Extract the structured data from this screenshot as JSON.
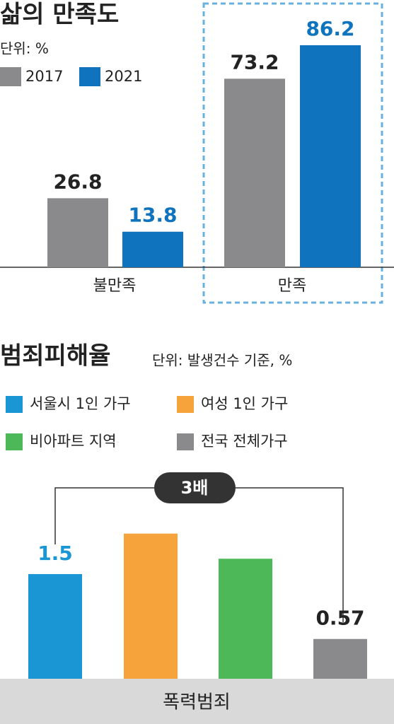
{
  "chart_data": [
    {
      "type": "bar",
      "title": "삶의 만족도",
      "subtitle": "단위: %",
      "categories": [
        "불만족",
        "만족"
      ],
      "series": [
        {
          "name": "2017",
          "color": "#8a8a8d",
          "values": [
            26.8,
            73.2
          ]
        },
        {
          "name": "2021",
          "color": "#0f73bd",
          "values": [
            13.8,
            86.2
          ]
        }
      ]
    },
    {
      "type": "bar",
      "title": "범죄피해율",
      "subtitle": "단위: 발생건수 기준, %",
      "categories": [
        "폭력범죄"
      ],
      "annotation": "3배",
      "series": [
        {
          "name": "서울시 1인 가구",
          "color": "#1a96d4",
          "values": [
            1.5
          ],
          "labeled": true
        },
        {
          "name": "여성 1인 가구",
          "color": "#f5a33a",
          "values": [
            2.08
          ]
        },
        {
          "name": "비아파트 지역",
          "color": "#4db857",
          "values": [
            1.72
          ]
        },
        {
          "name": "전국 전체가구",
          "color": "#8a8a8d",
          "values": [
            0.57
          ],
          "labeled": true
        }
      ]
    }
  ]
}
